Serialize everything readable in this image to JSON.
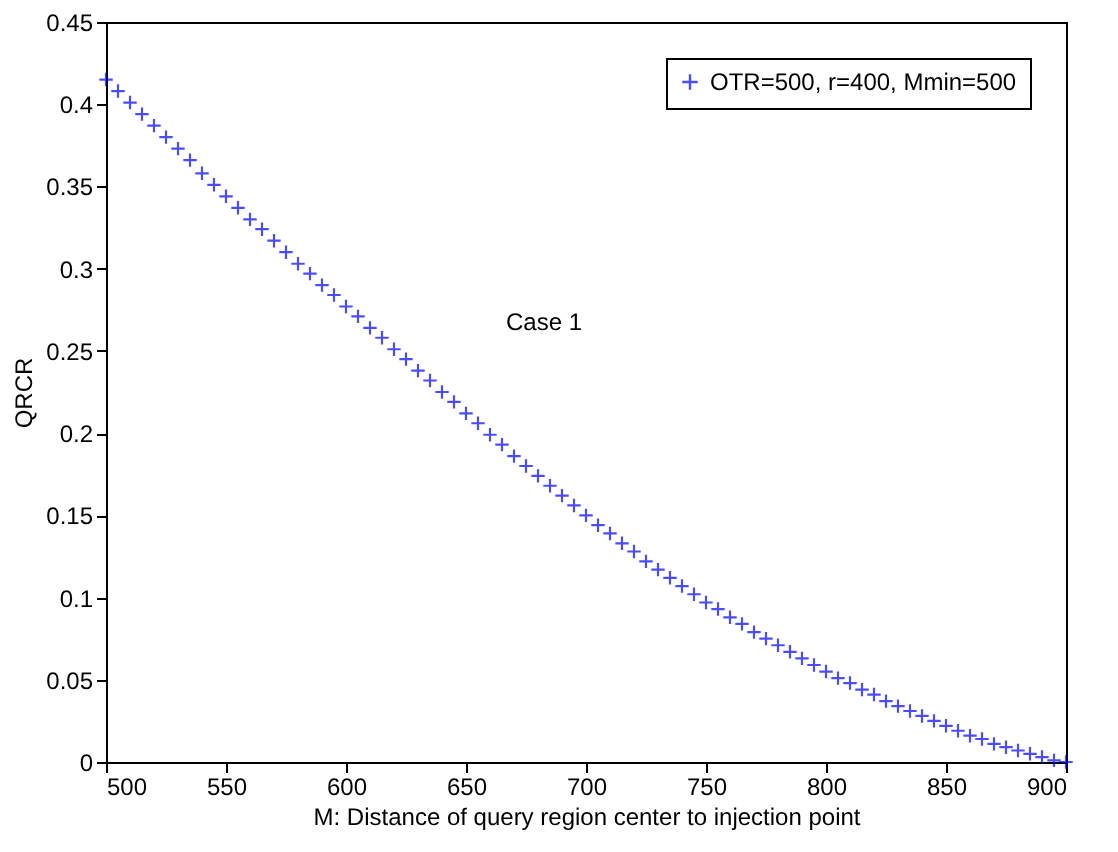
{
  "chart_data": {
    "type": "scatter",
    "xlabel": "M: Distance of query region center to injection point",
    "ylabel": "QRCR",
    "x": [
      500,
      505,
      510,
      515,
      520,
      525,
      530,
      535,
      540,
      545,
      550,
      555,
      560,
      565,
      570,
      575,
      580,
      585,
      590,
      595,
      600,
      605,
      610,
      615,
      620,
      625,
      630,
      635,
      640,
      645,
      650,
      655,
      660,
      665,
      670,
      675,
      680,
      685,
      690,
      695,
      700,
      705,
      710,
      715,
      720,
      725,
      730,
      735,
      740,
      745,
      750,
      755,
      760,
      765,
      770,
      775,
      780,
      785,
      790,
      795,
      800,
      805,
      810,
      815,
      820,
      825,
      830,
      835,
      840,
      845,
      850,
      855,
      860,
      865,
      870,
      875,
      880,
      885,
      890,
      895,
      900
    ],
    "series": [
      {
        "name": "OTR=500, r=400, Mmin=500",
        "color": "#0000ff",
        "values": [
          0.415,
          0.408,
          0.401,
          0.394,
          0.387,
          0.38,
          0.373,
          0.366,
          0.358,
          0.351,
          0.344,
          0.337,
          0.33,
          0.324,
          0.317,
          0.31,
          0.303,
          0.297,
          0.29,
          0.284,
          0.277,
          0.271,
          0.264,
          0.258,
          0.251,
          0.245,
          0.238,
          0.232,
          0.225,
          0.219,
          0.212,
          0.206,
          0.199,
          0.193,
          0.186,
          0.18,
          0.174,
          0.168,
          0.162,
          0.156,
          0.15,
          0.144,
          0.139,
          0.133,
          0.128,
          0.122,
          0.117,
          0.112,
          0.107,
          0.102,
          0.097,
          0.093,
          0.088,
          0.084,
          0.079,
          0.075,
          0.071,
          0.067,
          0.063,
          0.059,
          0.055,
          0.051,
          0.048,
          0.044,
          0.041,
          0.037,
          0.034,
          0.031,
          0.028,
          0.025,
          0.022,
          0.019,
          0.016,
          0.014,
          0.011,
          0.009,
          0.007,
          0.005,
          0.003,
          0.001,
          0
        ]
      }
    ],
    "xlim": [
      500,
      900
    ],
    "xticks": [
      500,
      550,
      600,
      650,
      700,
      750,
      800,
      850,
      900
    ],
    "ylim": [
      0,
      0.45
    ],
    "yticks": [
      0,
      0.05,
      0.1,
      0.15,
      0.2,
      0.25,
      0.3,
      0.35,
      0.4,
      0.45
    ],
    "annotations": [
      "Case 1"
    ],
    "marker": "cross",
    "legend": "top right",
    "grid": false
  }
}
